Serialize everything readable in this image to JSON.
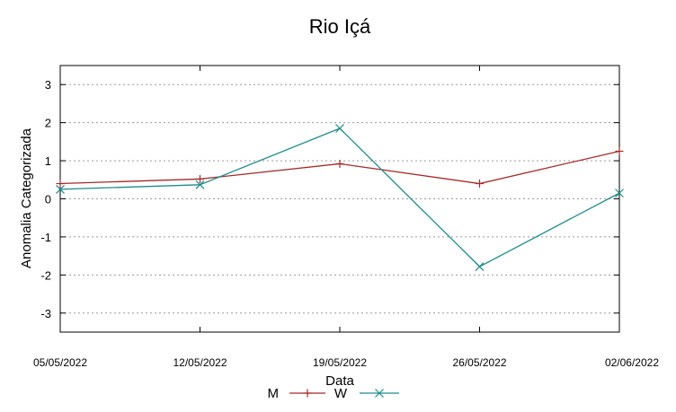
{
  "chart_data": {
    "type": "line",
    "title": "Rio Içá",
    "xlabel": "Data",
    "ylabel": "Anomalia Categorizada",
    "categories": [
      "05/05/2022",
      "12/05/2022",
      "19/05/2022",
      "26/05/2022",
      "02/06/2022"
    ],
    "yticks": [
      "3",
      "2",
      "1",
      "0",
      "-1",
      "-2",
      "-3"
    ],
    "ylim": [
      -3.5,
      3.5
    ],
    "grid": true,
    "legend_position": "bottom",
    "series": [
      {
        "name": "M",
        "values": [
          0.4,
          0.52,
          0.92,
          0.4,
          1.25
        ],
        "color": "#a52a2a",
        "marker": "plus"
      },
      {
        "name": "W",
        "values": [
          0.25,
          0.37,
          1.85,
          -1.78,
          0.15
        ],
        "color": "#1f8a8a",
        "marker": "cross"
      }
    ]
  }
}
